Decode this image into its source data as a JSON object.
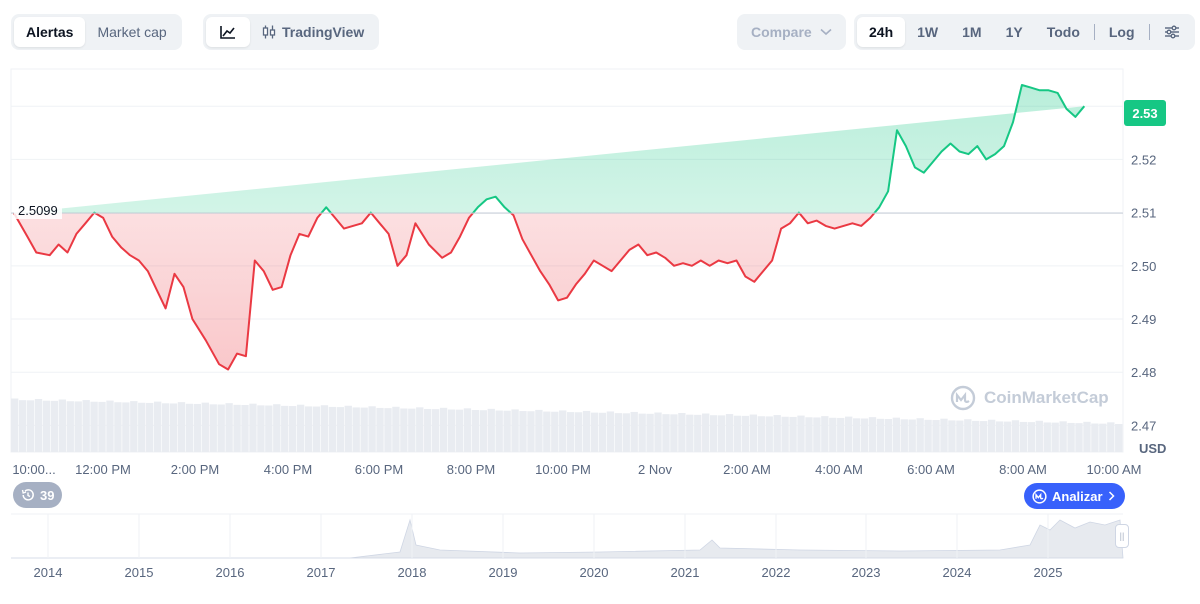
{
  "toolbar": {
    "alerts_label": "Alertas",
    "marketcap_label": "Market cap",
    "tradingview_label": "TradingView",
    "compare_label": "Compare",
    "range_24h": "24h",
    "range_1w": "1W",
    "range_1m": "1M",
    "range_1y": "1Y",
    "range_all": "Todo",
    "log_label": "Log"
  },
  "chart_data": {
    "type": "line",
    "baseline": 2.5099,
    "baseline_label": "2.5099",
    "current_price_label": "2.53",
    "currency_label": "USD",
    "ylim": [
      2.465,
      2.537
    ],
    "yticks": [
      2.47,
      2.48,
      2.49,
      2.5,
      2.51,
      2.52,
      2.53
    ],
    "ytick_labels": [
      "2.47",
      "2.48",
      "2.49",
      "2.50",
      "2.51",
      "2.52",
      ""
    ],
    "xtick_labels": [
      "10:00...",
      "12:00 PM",
      "2:00 PM",
      "4:00 PM",
      "6:00 PM",
      "8:00 PM",
      "10:00 PM",
      "2 Nov",
      "2:00 AM",
      "4:00 AM",
      "6:00 AM",
      "8:00 AM",
      "10:00 AM"
    ],
    "hours_from_start": [
      0,
      0.3,
      0.5,
      0.8,
      1.0,
      1.2,
      1.4,
      1.6,
      1.8,
      2.0,
      2.2,
      2.4,
      2.6,
      2.8,
      3.0,
      3.2,
      3.4,
      3.6,
      3.8,
      4.0,
      4.3,
      4.6,
      4.8,
      5.0,
      5.2,
      5.4,
      5.6,
      5.8,
      6.0,
      6.2,
      6.4,
      6.6,
      6.8,
      7.0,
      7.2,
      7.4,
      7.6,
      7.8,
      8.0,
      8.2,
      8.4,
      8.6,
      8.8,
      9.0,
      9.3,
      9.6,
      9.8,
      10.0,
      10.2,
      10.4,
      10.6,
      10.8,
      11.0,
      11.2,
      11.4,
      11.6,
      11.8,
      12.0,
      12.2,
      12.4,
      12.6,
      12.8,
      13.0,
      13.2,
      13.4,
      13.6,
      13.8,
      14.0,
      14.2,
      14.4,
      14.6,
      14.8,
      15.0,
      15.2,
      15.4,
      15.6,
      15.8,
      16.0,
      16.2,
      16.4,
      16.6,
      16.8,
      17.0,
      17.2,
      17.4,
      17.6,
      17.8,
      18.0,
      18.2,
      18.4,
      18.6,
      18.8,
      19.0,
      19.2,
      19.4,
      19.6,
      19.8,
      20.0,
      20.2,
      20.4,
      20.6,
      20.8,
      21.0,
      21.2,
      21.4,
      21.6,
      21.8,
      22.0,
      22.2,
      22.4,
      22.6,
      22.8,
      23.0,
      23.2,
      23.4,
      23.6,
      23.8,
      24.0,
      24.2,
      24.4,
      24.6,
      24.8
    ],
    "values": [
      2.5099,
      2.5055,
      2.5025,
      2.502,
      2.504,
      2.5025,
      2.506,
      2.508,
      2.51,
      2.509,
      2.5055,
      2.5035,
      2.502,
      2.501,
      2.499,
      2.4955,
      2.492,
      2.4985,
      2.496,
      2.49,
      2.486,
      2.4815,
      2.4805,
      2.4835,
      2.483,
      2.501,
      2.499,
      2.4955,
      2.496,
      2.502,
      2.506,
      2.5055,
      2.509,
      2.511,
      2.509,
      2.507,
      2.5075,
      2.508,
      2.51,
      2.508,
      2.506,
      2.5,
      2.502,
      2.508,
      2.504,
      2.5015,
      2.5025,
      2.5055,
      2.509,
      2.511,
      2.5125,
      2.513,
      2.511,
      2.5095,
      2.505,
      2.502,
      2.499,
      2.4965,
      2.4935,
      2.494,
      2.4965,
      2.4985,
      2.501,
      2.5,
      2.499,
      2.501,
      2.503,
      2.504,
      2.502,
      2.5025,
      2.5015,
      2.5,
      2.5005,
      2.5,
      2.501,
      2.5,
      2.501,
      2.5005,
      2.501,
      2.498,
      2.497,
      2.499,
      2.501,
      2.507,
      2.508,
      2.51,
      2.508,
      2.5085,
      2.5075,
      2.507,
      2.5075,
      2.508,
      2.5075,
      2.509,
      2.511,
      2.514,
      2.5255,
      2.5225,
      2.5185,
      2.5175,
      2.5195,
      2.5215,
      2.523,
      2.5215,
      2.521,
      2.5225,
      2.52,
      2.521,
      2.5225,
      2.527,
      2.534,
      2.5335,
      2.533,
      2.533,
      2.5325,
      2.5295,
      2.528,
      2.53
    ],
    "nav_years": [
      "2014",
      "2015",
      "2016",
      "2017",
      "2018",
      "2019",
      "2020",
      "2021",
      "2022",
      "2023",
      "2024",
      "2025"
    ],
    "up_color": "#16c784",
    "down_color": "#ea3943"
  },
  "footer": {
    "history_count": "39",
    "analyze_label": "Analizar",
    "watermark_text": "CoinMarketCap"
  }
}
